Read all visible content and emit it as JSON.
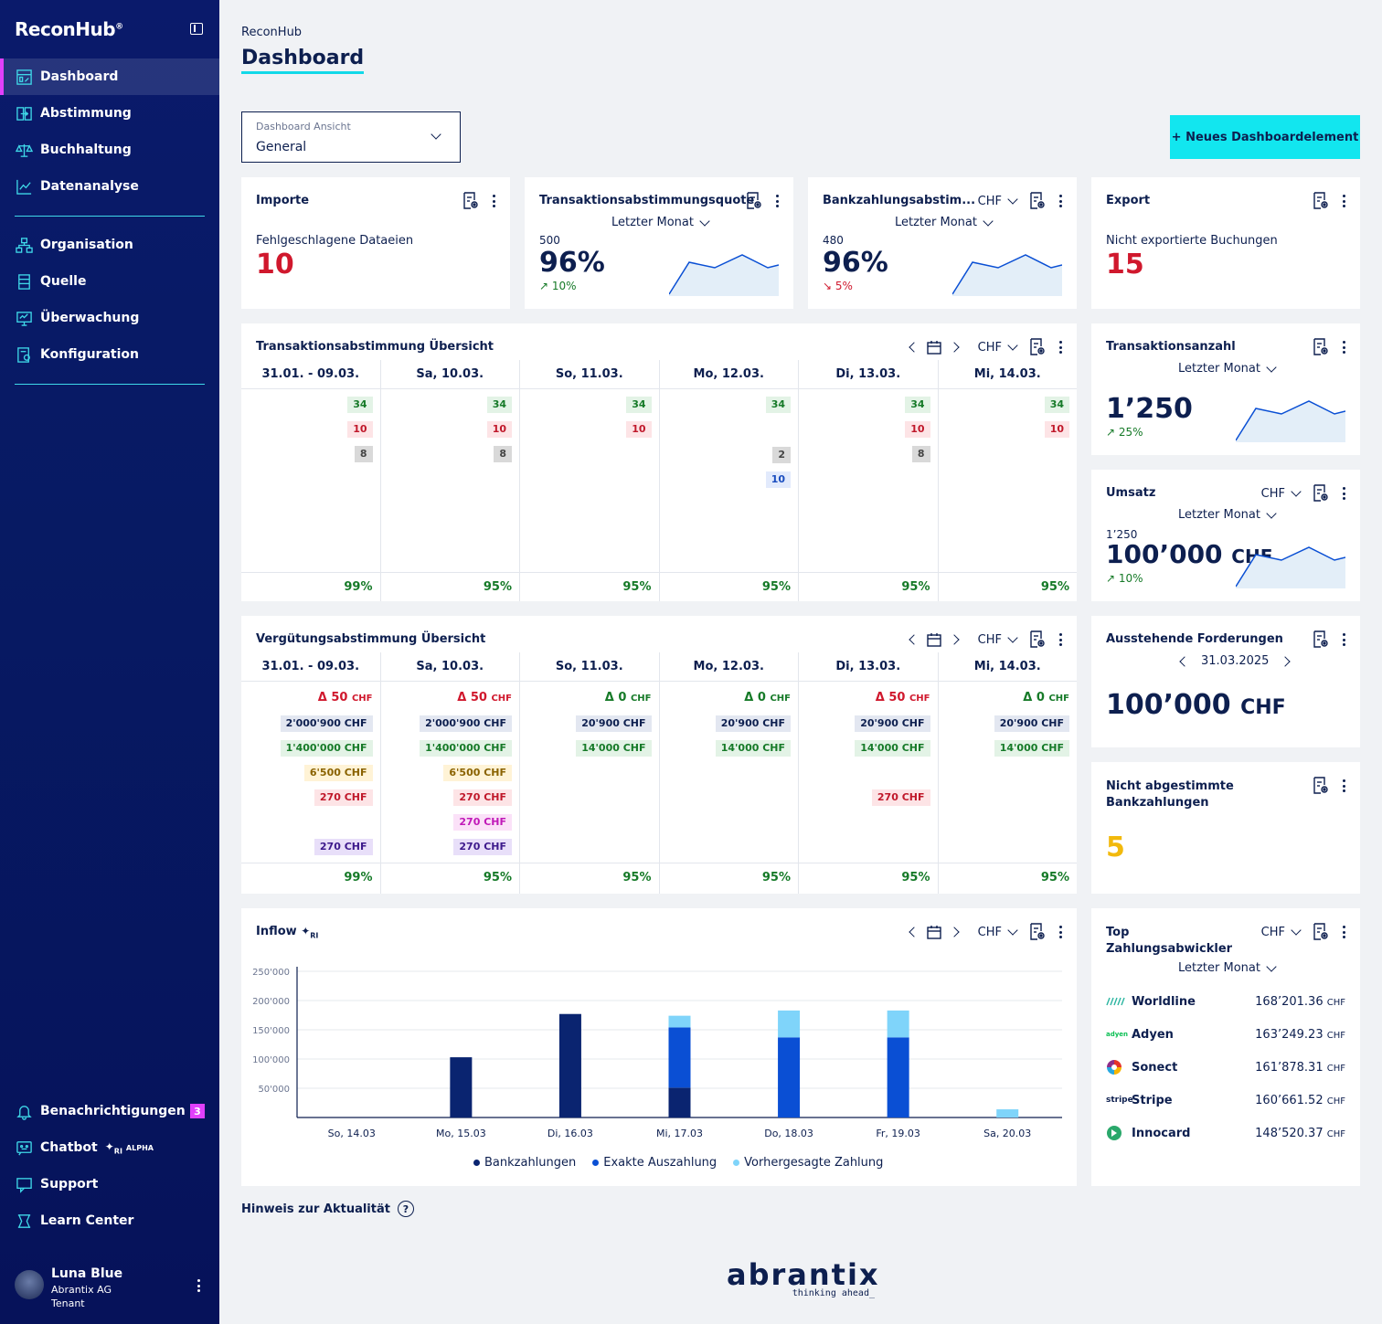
{
  "app": {
    "name": "ReconHub",
    "reg": "®"
  },
  "nav": {
    "items": [
      {
        "label": "Dashboard",
        "icon": "dashboard-icon"
      },
      {
        "label": "Abstimmung",
        "icon": "reconcile-icon"
      },
      {
        "label": "Buchhaltung",
        "icon": "scale-icon"
      },
      {
        "label": "Datenanalyse",
        "icon": "chart-line-icon"
      },
      {
        "label": "Organisation",
        "icon": "org-icon"
      },
      {
        "label": "Quelle",
        "icon": "database-icon"
      },
      {
        "label": "Überwachung",
        "icon": "monitor-icon"
      },
      {
        "label": "Konfiguration",
        "icon": "config-icon"
      }
    ],
    "bottom": [
      {
        "label": "Benachrichtigungen",
        "badge": "3"
      },
      {
        "label": "Chatbot",
        "tag": "ALPHA",
        "ri": "RI"
      },
      {
        "label": "Support"
      },
      {
        "label": "Learn Center"
      }
    ],
    "user": {
      "name": "Luna Blue",
      "org": "Abrantix AG",
      "role": "Tenant"
    }
  },
  "header": {
    "crumb": "ReconHub",
    "title": "Dashboard",
    "select_label": "Dashboard Ansicht",
    "select_value": "General",
    "new_button": "+  Neues Dashboardelement"
  },
  "common": {
    "period": "Letzter Monat",
    "currency": "CHF"
  },
  "importe": {
    "title": "Importe",
    "sub": "Fehlgeschlagene Dataeien",
    "value": "10"
  },
  "tq": {
    "title": "Transaktionsabstimmungsquote",
    "count": "500",
    "value": "96%",
    "trend": "10%"
  },
  "bq": {
    "title": "Bankzahlungsabstim...",
    "count": "480",
    "value": "96%",
    "trend": "5%"
  },
  "export": {
    "title": "Export",
    "sub": "Nicht exportierte Buchungen",
    "value": "15"
  },
  "tu": {
    "title": "Transaktionsabstimmung Übersicht",
    "cols": [
      {
        "head": "31.01. - 09.03.",
        "green": "34",
        "red": "10",
        "gray": "8",
        "blue": "",
        "foot": "99%"
      },
      {
        "head": "Sa, 10.03.",
        "green": "34",
        "red": "10",
        "gray": "8",
        "blue": "",
        "foot": "95%"
      },
      {
        "head": "So, 11.03.",
        "green": "34",
        "red": "10",
        "gray": "",
        "blue": "",
        "foot": "95%"
      },
      {
        "head": "Mo, 12.03.",
        "green": "34",
        "red": "",
        "gray": "2",
        "blue": "10",
        "foot": "95%"
      },
      {
        "head": "Di, 13.03.",
        "green": "34",
        "red": "10",
        "gray": "8",
        "blue": "",
        "foot": "95%"
      },
      {
        "head": "Mi, 14.03.",
        "green": "34",
        "red": "10",
        "gray": "",
        "blue": "",
        "foot": "95%"
      }
    ]
  },
  "vu": {
    "title": "Vergütungsabstimmung Übersicht",
    "cols": [
      {
        "head": "31.01. - 09.03.",
        "delta": "Δ 50",
        "neg": true,
        "navy": "2'000'900 CHF",
        "green": "1'400'000 CHF",
        "yellow": "6'500 CHF",
        "red": "270 CHF",
        "pink": "",
        "purple": "270 CHF",
        "foot": "99%"
      },
      {
        "head": "Sa, 10.03.",
        "delta": "Δ 50",
        "neg": true,
        "navy": "2'000'900 CHF",
        "green": "1'400'000 CHF",
        "yellow": "6'500 CHF",
        "red": "270 CHF",
        "pink": "270 CHF",
        "purple": "270 CHF",
        "foot": "95%"
      },
      {
        "head": "So, 11.03.",
        "delta": "Δ 0",
        "neg": false,
        "navy": "20'900 CHF",
        "green": "14'000 CHF",
        "yellow": "",
        "red": "",
        "pink": "",
        "purple": "",
        "foot": "95%"
      },
      {
        "head": "Mo, 12.03.",
        "delta": "Δ 0",
        "neg": false,
        "navy": "20'900 CHF",
        "green": "14'000 CHF",
        "yellow": "",
        "red": "",
        "pink": "",
        "purple": "",
        "foot": "95%"
      },
      {
        "head": "Di, 13.03.",
        "delta": "Δ 50",
        "neg": true,
        "navy": "20'900 CHF",
        "green": "14'000 CHF",
        "yellow": "",
        "red": "270 CHF",
        "pink": "",
        "purple": "",
        "foot": "95%"
      },
      {
        "head": "Mi, 14.03.",
        "delta": "Δ 0",
        "neg": false,
        "navy": "20'900 CHF",
        "green": "14'000 CHF",
        "yellow": "",
        "red": "",
        "pink": "",
        "purple": "",
        "foot": "95%"
      }
    ]
  },
  "ta": {
    "title": "Transaktionsanzahl",
    "value": "1’250",
    "trend": "25%"
  },
  "umsatz": {
    "title": "Umsatz",
    "count": "1’250",
    "value": "100’000",
    "unit": "CHF",
    "trend": "10%"
  },
  "af": {
    "title": "Ausstehende Forderungen",
    "date": "31.03.2025",
    "value": "100’000",
    "unit": "CHF"
  },
  "nab": {
    "title1": "Nicht abgestimmte",
    "title2": "Bankzahlungen",
    "value": "5"
  },
  "top": {
    "title1": "Top",
    "title2": "Zahlungsabwickler",
    "items": [
      {
        "name": "Worldline",
        "value": "168’201.36"
      },
      {
        "name": "Adyen",
        "value": "163’249.23"
      },
      {
        "name": "Sonect",
        "value": "161’878.31"
      },
      {
        "name": "Stripe",
        "value": "160’661.52"
      },
      {
        "name": "Innocard",
        "value": "148’520.37"
      }
    ],
    "logo_adyen": "adyen",
    "logo_stripe": "stripe"
  },
  "inflow": {
    "title": "Inflow",
    "ri": "RI"
  },
  "chart_data": {
    "type": "bar",
    "stacked": true,
    "categories": [
      "So, 14.03",
      "Mo, 15.03",
      "Di, 16.03",
      "Mi, 17.03",
      "Do, 18.03",
      "Fr, 19.03",
      "Sa, 20.03"
    ],
    "yticks": [
      "250'000",
      "200'000",
      "150'000",
      "100'000",
      "50'000"
    ],
    "ylim": [
      0,
      250000
    ],
    "series": [
      {
        "name": "Bankzahlungen",
        "color": "#0a2470",
        "values": [
          0,
          103000,
          177000,
          51000,
          0,
          0,
          0
        ]
      },
      {
        "name": "Exakte Auszahlung",
        "color": "#0a4fd4",
        "values": [
          0,
          0,
          0,
          103000,
          137000,
          137000,
          0
        ]
      },
      {
        "name": "Vorhergesagte Zahlung",
        "color": "#7fd4fa",
        "values": [
          0,
          0,
          0,
          20000,
          46000,
          46000,
          14000
        ]
      }
    ],
    "legend": "bottom"
  },
  "footer": {
    "hint": "Hinweis zur Aktualität",
    "brand": "abrantix",
    "tagline": "thinking ahead_"
  }
}
